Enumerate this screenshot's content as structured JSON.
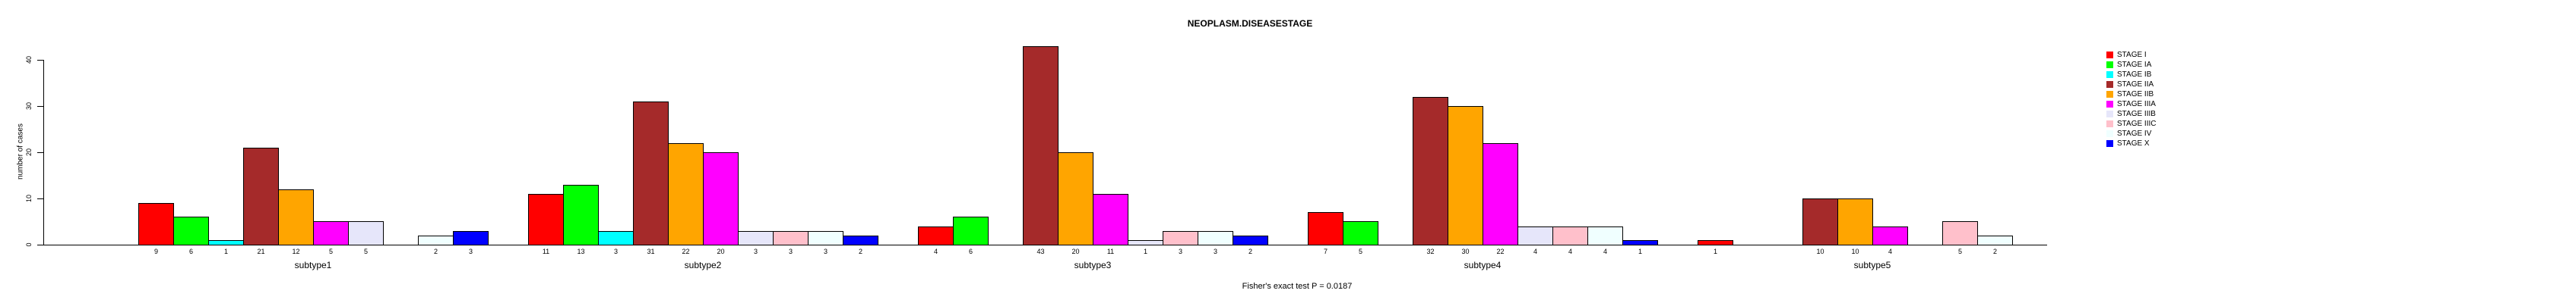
{
  "title": "NEOPLASM.DISEASESTAGE",
  "footer": "Fisher's exact test P = 0.0187",
  "chart_data": {
    "type": "bar",
    "title": "NEOPLASM.DISEASESTAGE",
    "xlabel": "",
    "ylabel": "number of cases",
    "ylim": [
      0,
      40
    ],
    "y_ticks": [
      0,
      10,
      20,
      30,
      40
    ],
    "grid": false,
    "legend_position": "right",
    "bar_value_labels": "shown under each nonzero bar",
    "categories": [
      "subtype1",
      "subtype2",
      "subtype3",
      "subtype4",
      "subtype5"
    ],
    "series": [
      {
        "name": "STAGE I",
        "color": "#FF0000",
        "values": [
          9,
          11,
          4,
          7,
          1
        ]
      },
      {
        "name": "STAGE IA",
        "color": "#00FF00",
        "values": [
          6,
          13,
          6,
          5,
          0
        ]
      },
      {
        "name": "STAGE IB",
        "color": "#00FFFF",
        "values": [
          1,
          3,
          0,
          0,
          0
        ]
      },
      {
        "name": "STAGE IIA",
        "color": "#A52A2A",
        "values": [
          21,
          31,
          43,
          32,
          10
        ]
      },
      {
        "name": "STAGE IIB",
        "color": "#FFA500",
        "values": [
          12,
          22,
          20,
          30,
          10
        ]
      },
      {
        "name": "STAGE IIIA",
        "color": "#FF00FF",
        "values": [
          5,
          20,
          11,
          22,
          4
        ]
      },
      {
        "name": "STAGE IIIB",
        "color": "#E6E6FA",
        "values": [
          5,
          3,
          1,
          4,
          0
        ]
      },
      {
        "name": "STAGE IIIC",
        "color": "#FFC0CB",
        "values": [
          0,
          3,
          3,
          4,
          5
        ]
      },
      {
        "name": "STAGE IV",
        "color": "#F0FFFF",
        "values": [
          2,
          3,
          3,
          4,
          2
        ]
      },
      {
        "name": "STAGE X",
        "color": "#0000FF",
        "values": [
          3,
          2,
          2,
          1,
          0
        ]
      }
    ],
    "annotation": "Fisher's exact test P = 0.0187"
  }
}
